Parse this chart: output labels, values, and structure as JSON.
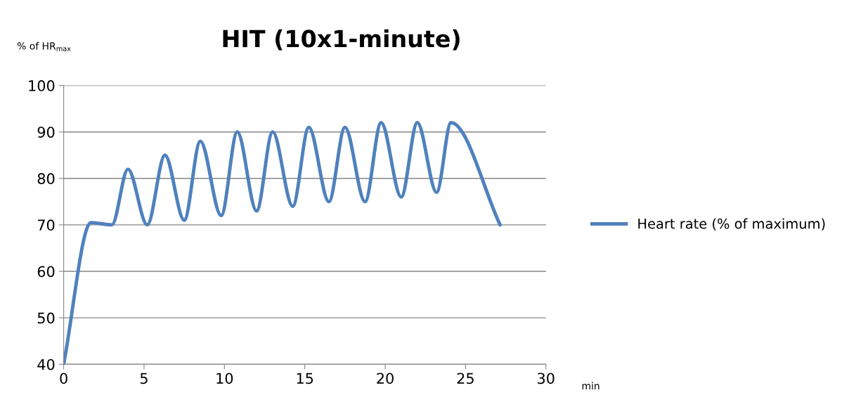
{
  "chart_data": {
    "type": "line",
    "title": "HIT (10x1-minute)",
    "ylabel": "% of HR$_{max}$",
    "xlabel": "min",
    "series": [
      {
        "name": "Heart rate (% of maximum)",
        "color": "#4f81bd",
        "x": [
          0,
          1.7,
          3.0,
          4.0,
          5.2,
          6.3,
          7.5,
          8.5,
          9.8,
          10.8,
          12.0,
          13.0,
          14.25,
          15.25,
          16.5,
          17.5,
          18.75,
          19.75,
          21.0,
          22.0,
          23.2,
          24.1,
          27.15
        ],
        "values": [
          40,
          70.5,
          70,
          82,
          70,
          85,
          71,
          88,
          72,
          90,
          73,
          90,
          74,
          91,
          75,
          91,
          75,
          92,
          76,
          92,
          77,
          92,
          70
        ]
      }
    ],
    "xlim": [
      0,
      30
    ],
    "xticks": [
      0,
      5,
      10,
      15,
      20,
      25,
      30
    ],
    "ylim": [
      40,
      100
    ],
    "yticks": [
      40,
      50,
      60,
      70,
      80,
      90,
      100
    ],
    "grid": "y",
    "legend": "right",
    "marker": "none",
    "line_style": "solid"
  }
}
